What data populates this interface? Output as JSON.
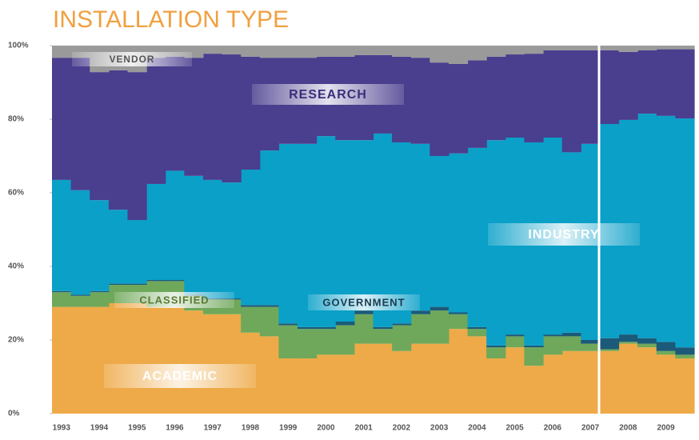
{
  "chart_data": {
    "type": "stacked_area_step",
    "title": "INSTALLATION TYPE",
    "categories": [
      "1993",
      null,
      "1994",
      null,
      "1995",
      null,
      "1996",
      null,
      "1997",
      null,
      "1998",
      null,
      "1999",
      null,
      "2000",
      null,
      "2001",
      null,
      "2002",
      null,
      "2003",
      null,
      "2004",
      null,
      "2005",
      null,
      "2006",
      null,
      "2007",
      null,
      "2008",
      null,
      "2009",
      null
    ],
    "series": [
      {
        "name": "ACADEMIC",
        "color": "#eeaa48",
        "values": [
          29,
          29,
          29,
          30,
          30,
          29,
          29,
          28,
          27,
          27,
          22,
          21,
          15,
          15,
          16,
          16,
          19,
          19,
          17,
          19,
          19,
          23,
          21,
          15,
          18,
          13,
          16,
          17,
          17,
          17,
          19,
          18,
          16,
          15
        ]
      },
      {
        "name": "CLASSIFIED",
        "color": "#6fa85a",
        "values": [
          4,
          3,
          4,
          5,
          5,
          7,
          7,
          4,
          4,
          4,
          7,
          8,
          9,
          8,
          7,
          8,
          8,
          4,
          7,
          8,
          9,
          4,
          2,
          3,
          3,
          5,
          5,
          4,
          2,
          0.5,
          0.5,
          1,
          1,
          1
        ]
      },
      {
        "name": "GOVERNMENT",
        "color": "#1b5a78",
        "values": [
          0.3,
          0.3,
          0.3,
          0.3,
          0.3,
          0.3,
          0.3,
          0.3,
          0.3,
          0.3,
          0.5,
          0.5,
          0.5,
          0.5,
          0.5,
          1,
          1,
          0.5,
          0.5,
          1,
          1,
          0.5,
          0.5,
          0.5,
          0.5,
          0.5,
          0.5,
          1,
          1,
          3,
          2,
          1.5,
          2.5,
          2
        ]
      },
      {
        "name": "INDUSTRY",
        "color": "#0aa0c8",
        "values": [
          30.2,
          28.4,
          24.7,
          20.1,
          17.3,
          26.1,
          29.7,
          32.3,
          32.2,
          31.5,
          36.8,
          42,
          48.8,
          49.8,
          51.9,
          49.3,
          46.3,
          52.6,
          49.2,
          45.3,
          41,
          43.2,
          48.7,
          55.8,
          53.5,
          55.2,
          53.5,
          49,
          53.3,
          58.2,
          58.3,
          61,
          61.4,
          62.2
        ]
      },
      {
        "name": "RESEARCH",
        "color": "#4a3e8e",
        "values": [
          33.2,
          36,
          34.8,
          37.9,
          40.2,
          34.3,
          31,
          32.1,
          34.3,
          34.8,
          30.7,
          25.2,
          23.4,
          23.4,
          21.6,
          22.7,
          23.1,
          21.3,
          23.3,
          23.4,
          25.4,
          24.3,
          23.8,
          22.7,
          22.6,
          24.1,
          23.7,
          27.7,
          25.4,
          20,
          18.5,
          17.2,
          18.1,
          18.8
        ]
      },
      {
        "name": "VENDOR",
        "color": "#9a9a9a",
        "values": [
          3.3,
          3.3,
          7.2,
          6.7,
          7.2,
          3.3,
          3,
          3.3,
          2.2,
          2.4,
          3,
          3.3,
          3.3,
          3.3,
          3,
          3,
          2.6,
          2.6,
          3,
          3.3,
          4.6,
          5,
          4,
          3,
          2.4,
          2.2,
          1.3,
          1.3,
          1.3,
          1.3,
          1.7,
          1.3,
          1,
          1
        ]
      }
    ],
    "ylim": [
      0,
      100
    ],
    "yticks": [
      {
        "value": 0,
        "label": "0%"
      },
      {
        "value": 20,
        "label": "20%"
      },
      {
        "value": 40,
        "label": "40%"
      },
      {
        "value": 60,
        "label": "60%"
      },
      {
        "value": 80,
        "label": "80%"
      },
      {
        "value": 100,
        "label": "100%"
      }
    ],
    "grid": false
  }
}
